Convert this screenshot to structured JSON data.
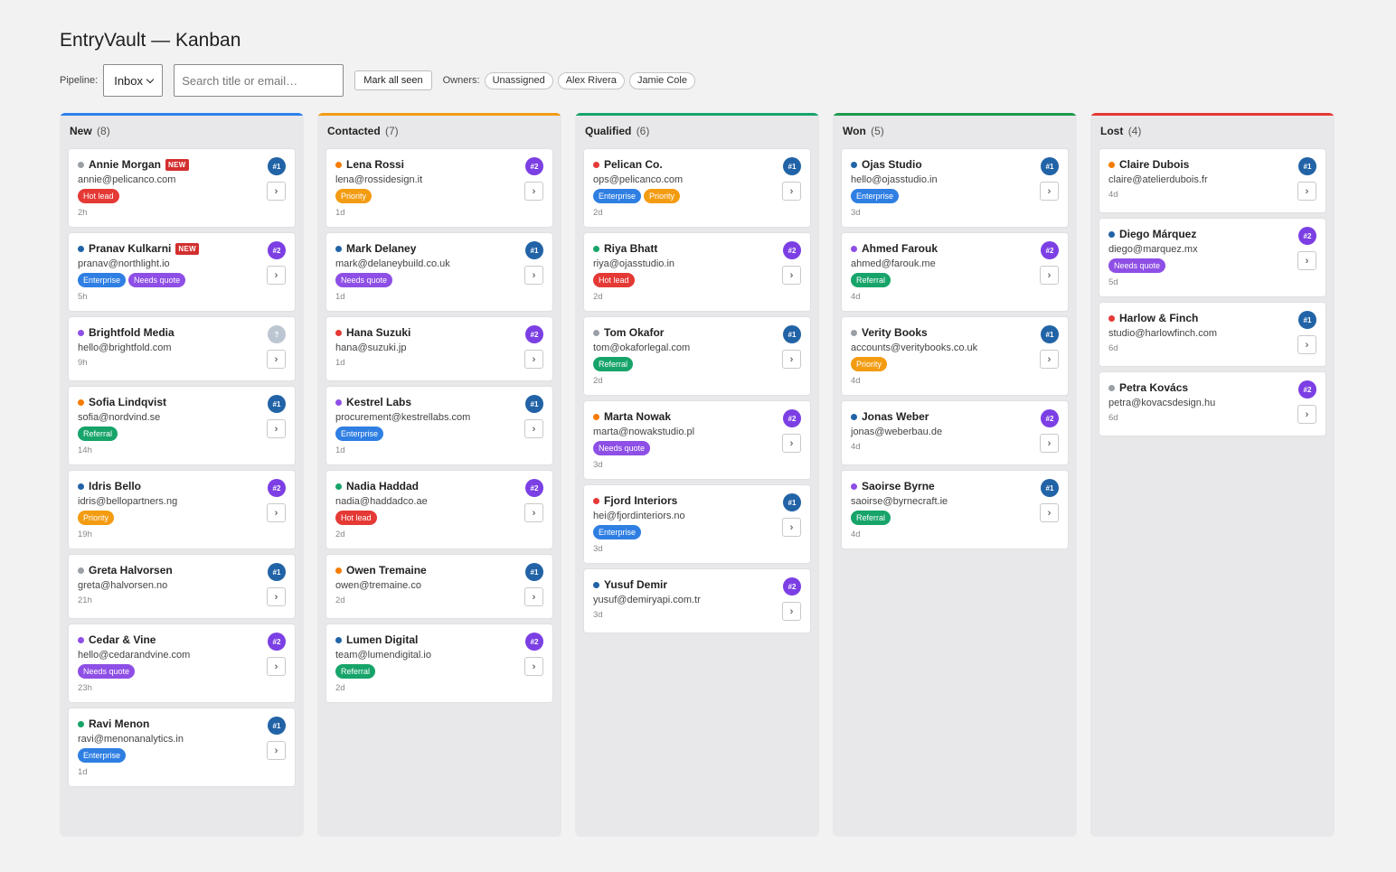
{
  "app": {
    "title": "EntryVault — Kanban"
  },
  "toolbar": {
    "pipeline_label": "Pipeline:",
    "pipeline_value": "Inbox",
    "search_placeholder": "Search title or email…",
    "search_value": "",
    "mark_all_label": "Mark all seen",
    "owners_label": "Owners:",
    "owners": [
      "Unassigned",
      "Alex Rivera",
      "Jamie Cole"
    ]
  },
  "colors": {
    "tags": {
      "Hot lead": "#e53935",
      "Enterprise": "#2f7fe3",
      "Needs quote": "#8e4fe6",
      "Referral": "#17a46a",
      "Priority": "#f39c12"
    },
    "ranks": {
      "#1": "#2163a6",
      "#2": "#7b3fe4",
      "?": "#bcc6d2"
    }
  },
  "columns": [
    {
      "title": "New",
      "count": "(8)",
      "accent": "#2f80ed",
      "cards": [
        {
          "name": "Annie Morgan",
          "email": "annie@pelicanco.com",
          "dot": "#9aa0a6",
          "new": "NEW",
          "tags": [
            "Hot lead"
          ],
          "age": "2h",
          "rank": "#1"
        },
        {
          "name": "Pranav Kulkarni",
          "email": "pranav@northlight.io",
          "dot": "#2163a6",
          "new": "NEW",
          "tags": [
            "Enterprise",
            "Needs quote"
          ],
          "age": "5h",
          "rank": "#2"
        },
        {
          "name": "Brightfold Media",
          "email": "hello@brightfold.com",
          "dot": "#8e4fe6",
          "tags": [],
          "age": "9h",
          "rank": "?"
        },
        {
          "name": "Sofia Lindqvist",
          "email": "sofia@nordvind.se",
          "dot": "#f57c00",
          "tags": [
            "Referral"
          ],
          "age": "14h",
          "rank": "#1"
        },
        {
          "name": "Idris Bello",
          "email": "idris@bellopartners.ng",
          "dot": "#2163a6",
          "tags": [
            "Priority"
          ],
          "age": "19h",
          "rank": "#2"
        },
        {
          "name": "Greta Halvorsen",
          "email": "greta@halvorsen.no",
          "dot": "#9aa0a6",
          "tags": [],
          "age": "21h",
          "rank": "#1"
        },
        {
          "name": "Cedar & Vine",
          "email": "hello@cedarandvine.com",
          "dot": "#8e4fe6",
          "tags": [
            "Needs quote"
          ],
          "age": "23h",
          "rank": "#2"
        },
        {
          "name": "Ravi Menon",
          "email": "ravi@menonanalytics.in",
          "dot": "#17a46a",
          "tags": [
            "Enterprise"
          ],
          "age": "1d",
          "rank": "#1"
        }
      ]
    },
    {
      "title": "Contacted",
      "count": "(7)",
      "accent": "#f39c12",
      "cards": [
        {
          "name": "Lena Rossi",
          "email": "lena@rossidesign.it",
          "dot": "#f57c00",
          "tags": [
            "Priority"
          ],
          "age": "1d",
          "rank": "#2"
        },
        {
          "name": "Mark Delaney",
          "email": "mark@delaneybuild.co.uk",
          "dot": "#2163a6",
          "tags": [
            "Needs quote"
          ],
          "age": "1d",
          "rank": "#1"
        },
        {
          "name": "Hana Suzuki",
          "email": "hana@suzuki.jp",
          "dot": "#e53935",
          "tags": [],
          "age": "1d",
          "rank": "#2"
        },
        {
          "name": "Kestrel Labs",
          "email": "procurement@kestrellabs.com",
          "dot": "#8e4fe6",
          "tags": [
            "Enterprise"
          ],
          "age": "1d",
          "rank": "#1"
        },
        {
          "name": "Nadia Haddad",
          "email": "nadia@haddadco.ae",
          "dot": "#17a46a",
          "tags": [
            "Hot lead"
          ],
          "age": "2d",
          "rank": "#2"
        },
        {
          "name": "Owen Tremaine",
          "email": "owen@tremaine.co",
          "dot": "#f57c00",
          "tags": [],
          "age": "2d",
          "rank": "#1"
        },
        {
          "name": "Lumen Digital",
          "email": "team@lumendigital.io",
          "dot": "#2163a6",
          "tags": [
            "Referral"
          ],
          "age": "2d",
          "rank": "#2"
        }
      ]
    },
    {
      "title": "Qualified",
      "count": "(6)",
      "accent": "#17a46a",
      "cards": [
        {
          "name": "Pelican Co.",
          "email": "ops@pelicanco.com",
          "dot": "#e53935",
          "tags": [
            "Enterprise",
            "Priority"
          ],
          "age": "2d",
          "rank": "#1"
        },
        {
          "name": "Riya Bhatt",
          "email": "riya@ojasstudio.in",
          "dot": "#17a46a",
          "tags": [
            "Hot lead"
          ],
          "age": "2d",
          "rank": "#2"
        },
        {
          "name": "Tom Okafor",
          "email": "tom@okaforlegal.com",
          "dot": "#9aa0a6",
          "tags": [
            "Referral"
          ],
          "age": "2d",
          "rank": "#1"
        },
        {
          "name": "Marta Nowak",
          "email": "marta@nowakstudio.pl",
          "dot": "#f57c00",
          "tags": [
            "Needs quote"
          ],
          "age": "3d",
          "rank": "#2"
        },
        {
          "name": "Fjord Interiors",
          "email": "hei@fjordinteriors.no",
          "dot": "#e53935",
          "tags": [
            "Enterprise"
          ],
          "age": "3d",
          "rank": "#1"
        },
        {
          "name": "Yusuf Demir",
          "email": "yusuf@demiryapi.com.tr",
          "dot": "#2163a6",
          "tags": [],
          "age": "3d",
          "rank": "#2"
        }
      ]
    },
    {
      "title": "Won",
      "count": "(5)",
      "accent": "#1e9a4e",
      "cards": [
        {
          "name": "Ojas Studio",
          "email": "hello@ojasstudio.in",
          "dot": "#2163a6",
          "tags": [
            "Enterprise"
          ],
          "age": "3d",
          "rank": "#1"
        },
        {
          "name": "Ahmed Farouk",
          "email": "ahmed@farouk.me",
          "dot": "#8e4fe6",
          "tags": [
            "Referral"
          ],
          "age": "4d",
          "rank": "#2"
        },
        {
          "name": "Verity Books",
          "email": "accounts@veritybooks.co.uk",
          "dot": "#9aa0a6",
          "tags": [
            "Priority"
          ],
          "age": "4d",
          "rank": "#1"
        },
        {
          "name": "Jonas Weber",
          "email": "jonas@weberbau.de",
          "dot": "#2163a6",
          "tags": [],
          "age": "4d",
          "rank": "#2"
        },
        {
          "name": "Saoirse Byrne",
          "email": "saoirse@byrnecraft.ie",
          "dot": "#8e4fe6",
          "tags": [
            "Referral"
          ],
          "age": "4d",
          "rank": "#1"
        }
      ]
    },
    {
      "title": "Lost",
      "count": "(4)",
      "accent": "#e53935",
      "cards": [
        {
          "name": "Claire Dubois",
          "email": "claire@atelierdubois.fr",
          "dot": "#f57c00",
          "tags": [],
          "age": "4d",
          "rank": "#1"
        },
        {
          "name": "Diego Márquez",
          "email": "diego@marquez.mx",
          "dot": "#2163a6",
          "tags": [
            "Needs quote"
          ],
          "age": "5d",
          "rank": "#2"
        },
        {
          "name": "Harlow & Finch",
          "email": "studio@harlowfinch.com",
          "dot": "#e53935",
          "tags": [],
          "age": "6d",
          "rank": "#1"
        },
        {
          "name": "Petra Kovács",
          "email": "petra@kovacsdesign.hu",
          "dot": "#9aa0a6",
          "tags": [],
          "age": "6d",
          "rank": "#2"
        }
      ]
    }
  ]
}
